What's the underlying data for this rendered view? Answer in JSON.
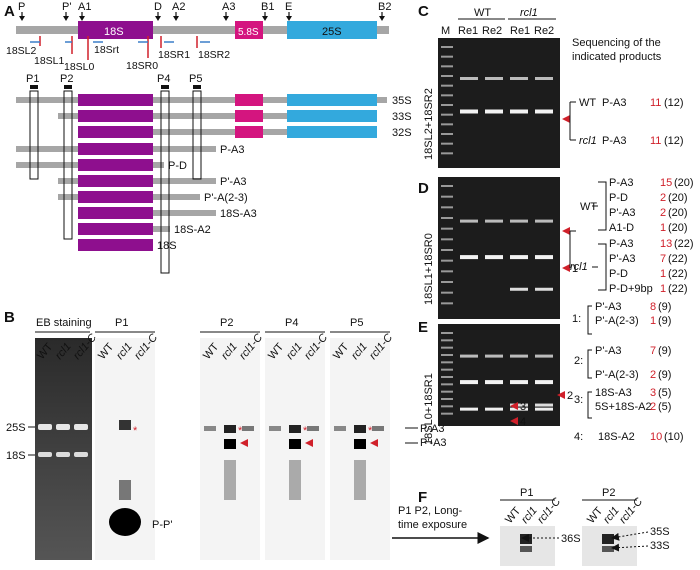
{
  "colors": {
    "mature_18s": "#8e0f8e",
    "rrna_58s": "#d4157f",
    "rrna_25s": "#33a9dd",
    "spacer": "#a6a6a6",
    "arrow_red": "#d0202a",
    "primer_blue": "#3a7ec8"
  },
  "panel_a": {
    "letter": "A",
    "sites": [
      "P",
      "P'",
      "A1",
      "D",
      "A2",
      "A3",
      "B1",
      "E",
      "B2"
    ],
    "regions": {
      "r18s": "18S",
      "r58s": "5.8S",
      "r25s": "25S"
    },
    "primers": [
      "18SL2",
      "18SL1",
      "18Srt",
      "18SL0",
      "18SR0",
      "18SR1",
      "18SR2"
    ],
    "probes": [
      "P1",
      "P2",
      "P4",
      "P5"
    ],
    "precursors": [
      "35S",
      "33S",
      "32S",
      "P-A3",
      "P-D",
      "P'-A3",
      "P'-A(2-3)",
      "18S-A3",
      "18S-A2",
      "18S"
    ]
  },
  "panel_b": {
    "letter": "B",
    "eb_title": "EB staining",
    "probe_titles": [
      "P1",
      "P2",
      "P4",
      "P5"
    ],
    "lanes": [
      "WT",
      "rcl1",
      "rcl1-C"
    ],
    "markers": [
      "25S",
      "18S"
    ],
    "band_labels": [
      "P-A3",
      "P'-A3"
    ],
    "p1_product": "P-P'",
    "asterisk": "*"
  },
  "panel_c": {
    "letter": "C",
    "marker": "M",
    "groups": [
      "WT",
      "rcl1"
    ],
    "lanes": [
      "Re1",
      "Re2",
      "Re1",
      "Re2"
    ],
    "side_label": "18SL2+18SR2",
    "note": "Sequencing of the indicated products",
    "rows": [
      {
        "group": "WT",
        "item": "P-A3",
        "count": "11",
        "total": "(12)"
      },
      {
        "group": "rcl1",
        "item": "P-A3",
        "count": "11",
        "total": "(12)"
      }
    ]
  },
  "panel_d": {
    "letter": "D",
    "side_label": "18SL1+18SR0",
    "wt_rows": [
      {
        "item": "P-A3",
        "count": "15",
        "total": "(20)"
      },
      {
        "item": "P-D",
        "count": "2",
        "total": "(20)"
      },
      {
        "item": "P'-A3",
        "count": "2",
        "total": "(20)"
      },
      {
        "item": "A1-D",
        "count": "1",
        "total": "(20)"
      }
    ],
    "rcl1_rows": [
      {
        "item": "P-A3",
        "count": "13",
        "total": "(22)"
      },
      {
        "item": "P'-A3",
        "count": "7",
        "total": "(22)"
      },
      {
        "item": "P-D",
        "count": "1",
        "total": "(22)"
      },
      {
        "item": "P-D+9bp",
        "count": "1",
        "total": "(22)"
      }
    ],
    "band1_label": "1",
    "band1_rows": [
      {
        "item": "P'-A3",
        "count": "8",
        "total": "(9)"
      },
      {
        "item": "P'-A(2-3)",
        "count": "1",
        "total": "(9)"
      }
    ]
  },
  "panel_e": {
    "letter": "E",
    "side_label": "18SL0+18SR1",
    "bands": [
      "2",
      "3",
      "4"
    ],
    "band2_rows": [
      {
        "item": "P'-A3",
        "count": "7",
        "total": "(9)"
      },
      {
        "item": "P'-A(2-3)",
        "count": "2",
        "total": "(9)"
      }
    ],
    "band3_rows": [
      {
        "item": "18S-A3",
        "count": "3",
        "total": "(5)"
      },
      {
        "item": "5S+18S-A2",
        "count": "2",
        "total": "(5)"
      }
    ],
    "band4_rows": [
      {
        "item": "18S-A2",
        "count": "10",
        "total": "(10)"
      }
    ]
  },
  "panel_f": {
    "letter": "F",
    "arrow_text": [
      "P1 P2, Long-",
      "time exposure"
    ],
    "probe_titles": [
      "P1",
      "P2"
    ],
    "lanes": [
      "WT",
      "rcl1",
      "rcl1-C"
    ],
    "labels": [
      "36S",
      "35S",
      "33S"
    ]
  }
}
